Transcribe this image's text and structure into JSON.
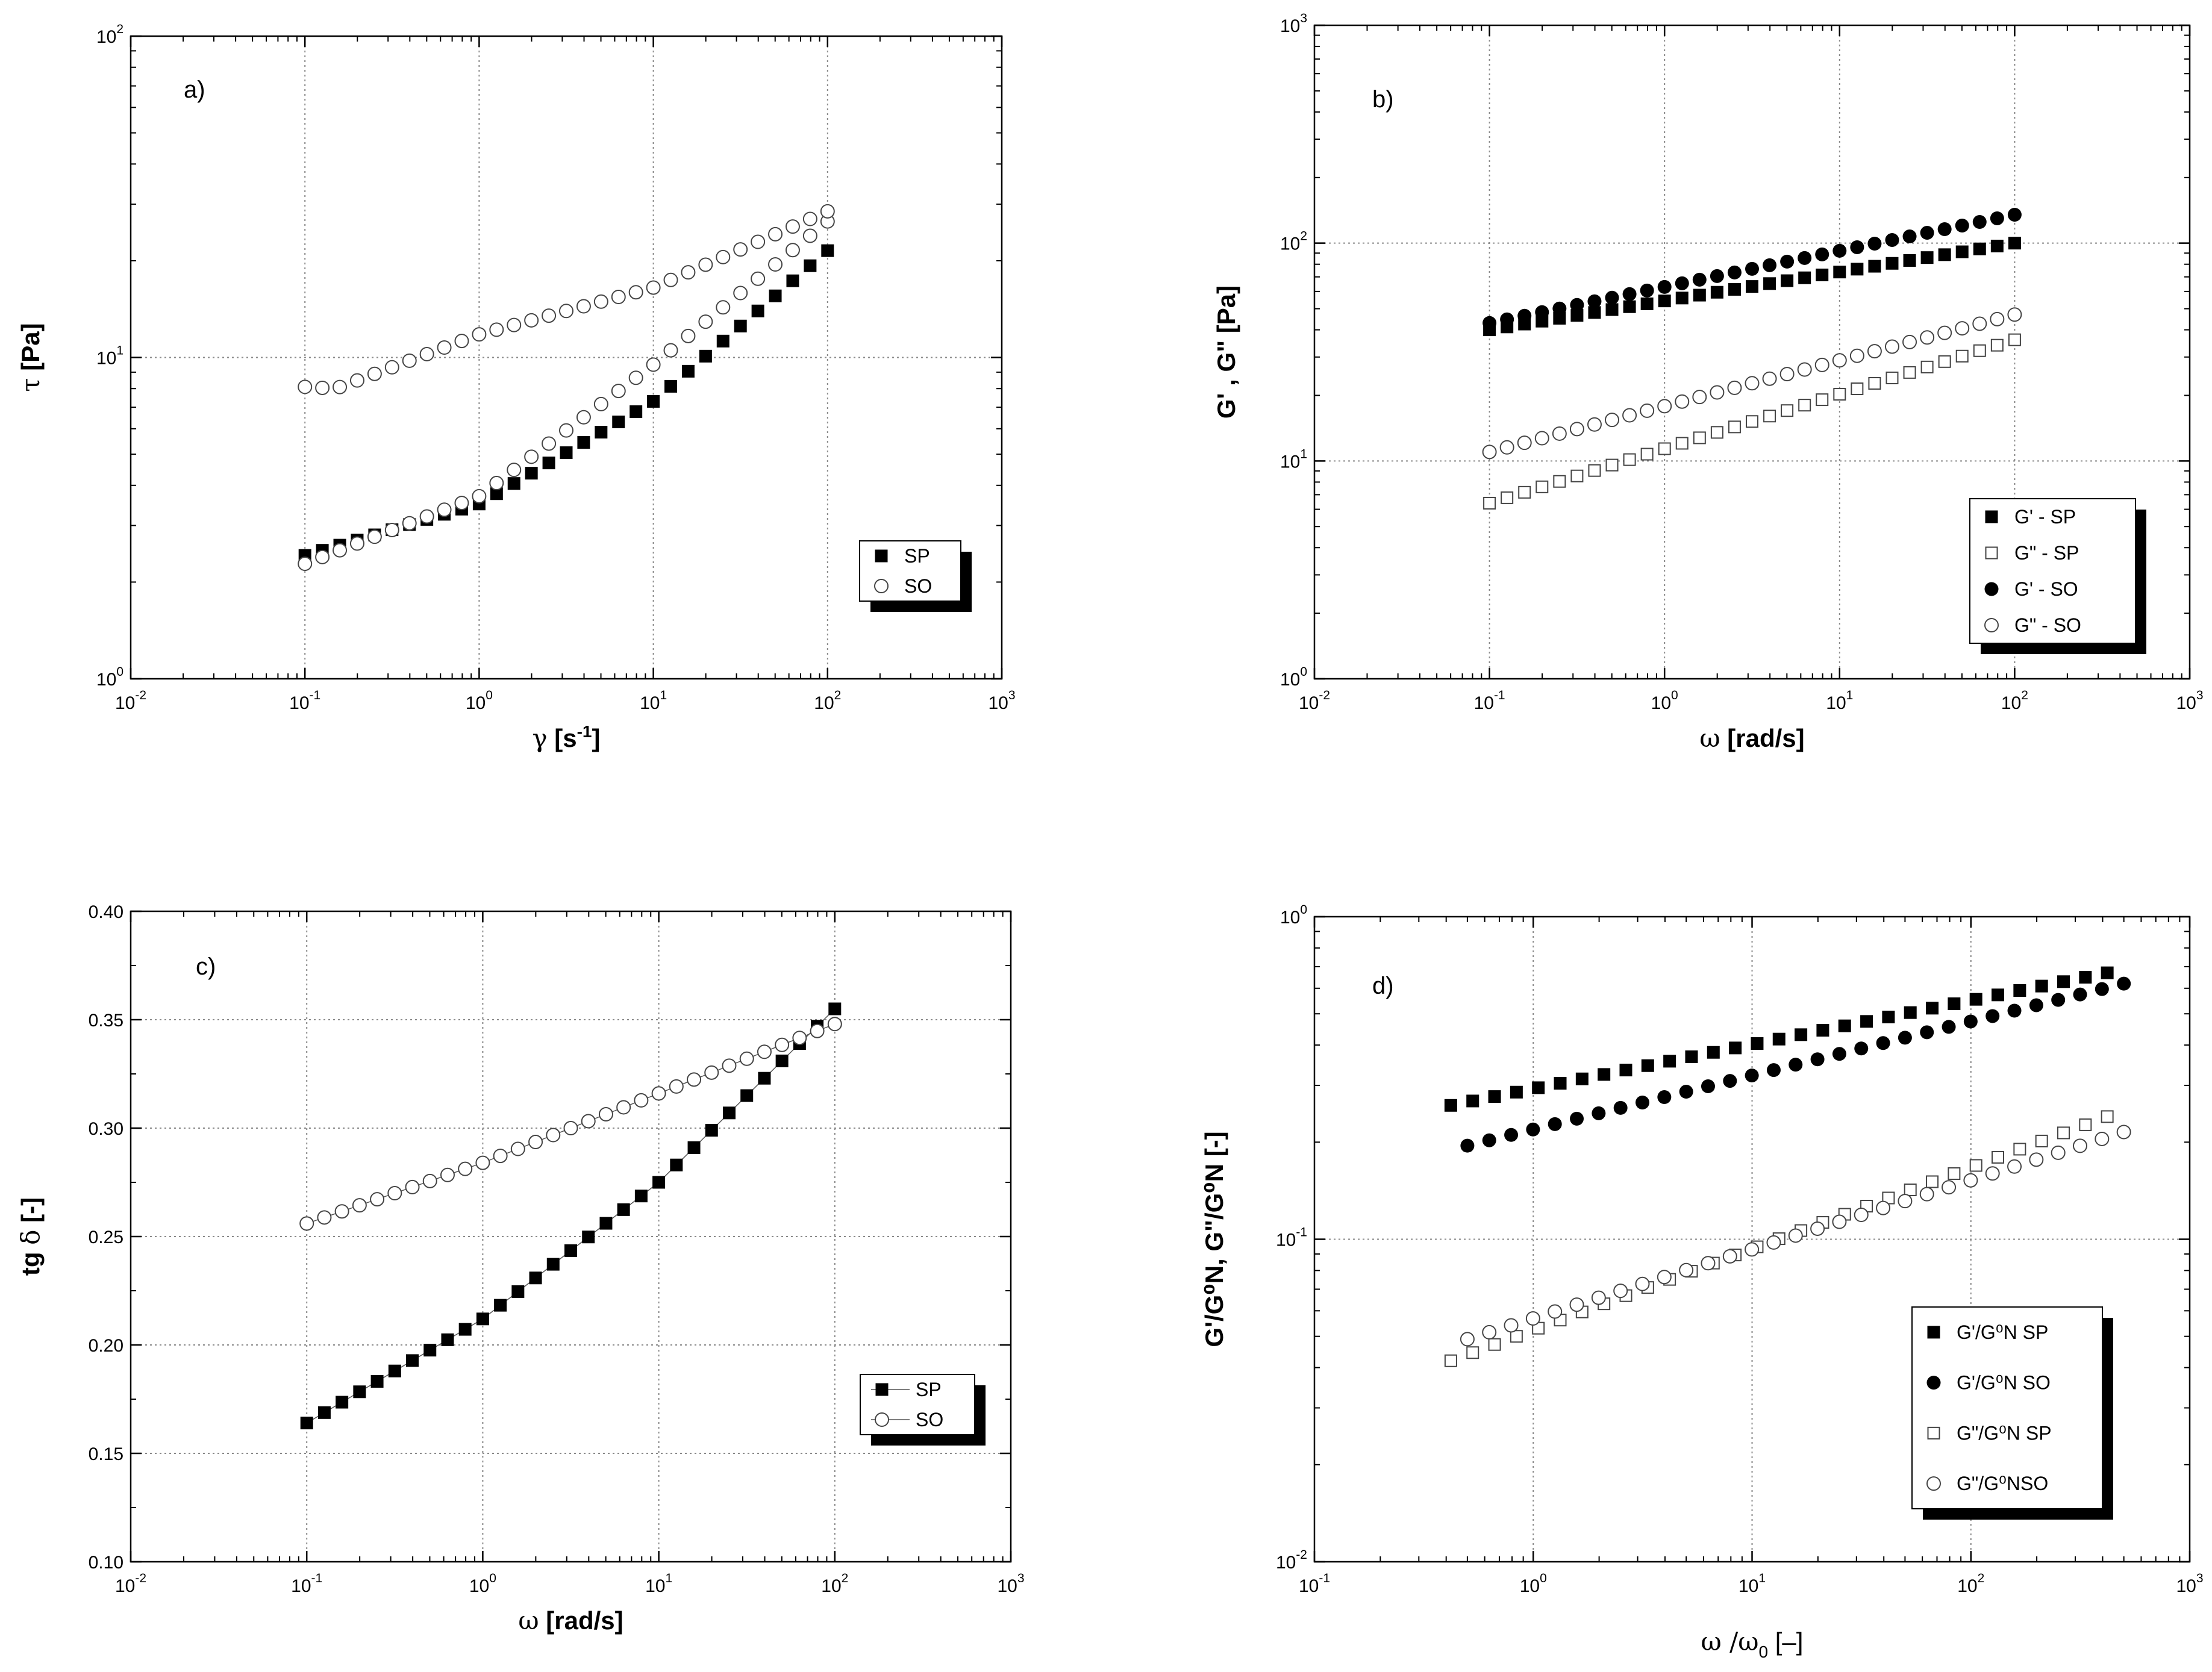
{
  "chart_data": [
    {
      "id": "a",
      "type": "scatter",
      "panel_label": "a)",
      "xscale": "log",
      "yscale": "log",
      "xlim": [
        0.01,
        1000
      ],
      "ylim": [
        1,
        100
      ],
      "xticks": [
        {
          "m": "10",
          "e": "-2"
        },
        {
          "m": "10",
          "e": "-1"
        },
        {
          "m": "10",
          "e": "0"
        },
        {
          "m": "10",
          "e": "1"
        },
        {
          "m": "10",
          "e": "2"
        },
        {
          "m": "10",
          "e": "3"
        }
      ],
      "yticks": [
        {
          "m": "10",
          "e": "0"
        },
        {
          "m": "10",
          "e": "1"
        },
        {
          "m": "10",
          "e": "2"
        }
      ],
      "xlabel": {
        "sym": "γ",
        "unit_pre": " [s",
        "sup": "-1",
        "unit_post": "]"
      },
      "ylabel": {
        "sym": "τ",
        "unit": " [Pa]"
      },
      "legend_position": "lower-right",
      "legend": [
        "SP",
        "SO"
      ],
      "series": [
        {
          "name": "SP",
          "marker": "filled-square",
          "generator": {
            "kind": "flow-curve",
            "x_from": 0.1,
            "x_to": 100,
            "n": 31,
            "y_anchors": [
              [
                0.1,
                2.42
              ],
              [
                1,
                3.5
              ],
              [
                10,
                7.3
              ],
              [
                100,
                21.5
              ]
            ]
          }
        },
        {
          "name": "SO",
          "marker": "open-circle",
          "generator": {
            "kind": "flow-curve",
            "x_from": 0.1,
            "x_to": 100,
            "n": 31,
            "y_anchors": [
              [
                0.1,
                2.28
              ],
              [
                1,
                3.7
              ],
              [
                10,
                9.5
              ],
              [
                100,
                26.5
              ]
            ]
          }
        },
        {
          "name": "SO",
          "marker": "open-circle",
          "generator": {
            "kind": "flow-curve",
            "x_from": 0.1,
            "x_to": 100,
            "n": 31,
            "y_anchors": [
              [
                0.1,
                8.1
              ],
              [
                0.15,
                8.0
              ],
              [
                1,
                11.8
              ],
              [
                10,
                16.5
              ],
              [
                100,
                28.5
              ]
            ]
          }
        }
      ]
    },
    {
      "id": "b",
      "type": "scatter",
      "panel_label": "b)",
      "xscale": "log",
      "yscale": "log",
      "xlim": [
        0.01,
        1000
      ],
      "ylim": [
        1,
        1000
      ],
      "xticks": [
        {
          "m": "10",
          "e": "-2"
        },
        {
          "m": "10",
          "e": "-1"
        },
        {
          "m": "10",
          "e": "0"
        },
        {
          "m": "10",
          "e": "1"
        },
        {
          "m": "10",
          "e": "2"
        },
        {
          "m": "10",
          "e": "3"
        }
      ],
      "yticks": [
        {
          "m": "10",
          "e": "0"
        },
        {
          "m": "10",
          "e": "1"
        },
        {
          "m": "10",
          "e": "2"
        },
        {
          "m": "10",
          "e": "3"
        }
      ],
      "xlabel": {
        "sym": "ω",
        "unit": " [rad/s]"
      },
      "ylabel": {
        "text": "G' , G\" [Pa]"
      },
      "legend_position": "lower-right",
      "legend": [
        "G' -  SP",
        "G\" - SP",
        "G' - SO",
        "G\" - SO"
      ],
      "series": [
        {
          "name": "G' - SP",
          "marker": "filled-square",
          "generator": {
            "kind": "power-law",
            "x_from": 0.1,
            "x_to": 100,
            "n": 31,
            "y_start": 40,
            "y_end": 100
          }
        },
        {
          "name": "G\" - SP",
          "marker": "open-square",
          "generator": {
            "kind": "power-law",
            "x_from": 0.1,
            "x_to": 100,
            "n": 31,
            "y_start": 6.4,
            "y_end": 36
          }
        },
        {
          "name": "G' - SO",
          "marker": "filled-circle",
          "generator": {
            "kind": "power-law",
            "x_from": 0.1,
            "x_to": 100,
            "n": 31,
            "y_start": 43,
            "y_end": 135
          }
        },
        {
          "name": "G\" - SO",
          "marker": "open-circle",
          "generator": {
            "kind": "power-law",
            "x_from": 0.1,
            "x_to": 100,
            "n": 31,
            "y_start": 11,
            "y_end": 47
          }
        }
      ]
    },
    {
      "id": "c",
      "type": "line",
      "panel_label": "c)",
      "xscale": "log",
      "yscale": "linear",
      "xlim": [
        0.01,
        1000
      ],
      "ylim": [
        0.1,
        0.4
      ],
      "xticks": [
        {
          "m": "10",
          "e": "-2"
        },
        {
          "m": "10",
          "e": "-1"
        },
        {
          "m": "10",
          "e": "0"
        },
        {
          "m": "10",
          "e": "1"
        },
        {
          "m": "10",
          "e": "2"
        },
        {
          "m": "10",
          "e": "3"
        }
      ],
      "yticks": [
        "0.10",
        "0.15",
        "0.20",
        "0.25",
        "0.30",
        "0.35",
        "0.40"
      ],
      "xlabel": {
        "sym": "ω",
        "unit": " [rad/s]"
      },
      "ylabel": {
        "pre": "tg ",
        "sym": "δ",
        "unit": " [-]"
      },
      "legend_position": "lower-right",
      "legend": [
        "SP",
        "SO"
      ],
      "series": [
        {
          "name": "SP",
          "marker": "filled-square",
          "generator": {
            "kind": "log-linear",
            "x_from": 0.1,
            "x_to": 100,
            "n": 31,
            "y_anchors": [
              [
                0.1,
                0.164
              ],
              [
                1,
                0.212
              ],
              [
                10,
                0.275
              ],
              [
                100,
                0.355
              ]
            ]
          }
        },
        {
          "name": "SO",
          "marker": "open-circle",
          "generator": {
            "kind": "log-linear",
            "x_from": 0.1,
            "x_to": 100,
            "n": 31,
            "y_anchors": [
              [
                0.1,
                0.256
              ],
              [
                1,
                0.284
              ],
              [
                10,
                0.316
              ],
              [
                100,
                0.348
              ]
            ]
          }
        }
      ]
    },
    {
      "id": "d",
      "type": "scatter",
      "panel_label": "d)",
      "xscale": "log",
      "yscale": "log",
      "xlim": [
        0.1,
        1000
      ],
      "ylim": [
        0.01,
        1
      ],
      "xticks": [
        {
          "m": "10",
          "e": "-1"
        },
        {
          "m": "10",
          "e": "0"
        },
        {
          "m": "10",
          "e": "1"
        },
        {
          "m": "10",
          "e": "2"
        },
        {
          "m": "10",
          "e": "3"
        }
      ],
      "yticks": [
        {
          "m": "10",
          "e": "-2"
        },
        {
          "m": "10",
          "e": "-1"
        },
        {
          "m": "10",
          "e": "0"
        }
      ],
      "xlabel": {
        "sym": "ω",
        "mid": " /ω",
        "sub": "0",
        "unit": " [–]"
      },
      "ylabel": {
        "text": "G'/G⁰N, G\"/G⁰N [-]"
      },
      "legend_position": "lower-right",
      "legend": [
        "G'/G⁰N SP",
        "G'/G⁰N SO",
        "G\"/G⁰N SP",
        "G\"/G⁰NSO"
      ],
      "series": [
        {
          "name": "G'/G⁰N SP",
          "marker": "filled-square",
          "generator": {
            "kind": "power-law",
            "x_from": 0.42,
            "x_to": 420,
            "n": 31,
            "y_start": 0.26,
            "y_end": 0.67
          }
        },
        {
          "name": "G'/G⁰N SO",
          "marker": "filled-circle",
          "generator": {
            "kind": "power-law",
            "x_from": 0.5,
            "x_to": 500,
            "n": 31,
            "y_start": 0.195,
            "y_end": 0.62
          }
        },
        {
          "name": "G\"/G⁰N SP",
          "marker": "open-square",
          "generator": {
            "kind": "power-law",
            "x_from": 0.42,
            "x_to": 420,
            "n": 31,
            "y_start": 0.042,
            "y_end": 0.24
          }
        },
        {
          "name": "G\"/G⁰NSO",
          "marker": "open-circle",
          "generator": {
            "kind": "power-law",
            "x_from": 0.5,
            "x_to": 500,
            "n": 31,
            "y_start": 0.049,
            "y_end": 0.215
          }
        }
      ]
    }
  ]
}
